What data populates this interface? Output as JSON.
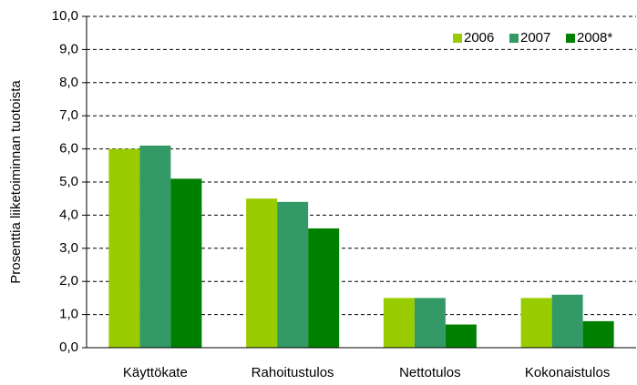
{
  "chart_data": {
    "type": "bar",
    "y_label": "Prosenttia liiketoiminnan tuotoista",
    "categories": [
      "Käyttökate",
      "Rahoitustulos",
      "Nettotulos",
      "Kokonaistulos"
    ],
    "series": [
      {
        "name": "2006",
        "color": "#99cc00",
        "values": [
          6.0,
          4.5,
          1.5,
          1.5
        ]
      },
      {
        "name": "2007",
        "color": "#339966",
        "values": [
          6.1,
          4.4,
          1.5,
          1.6
        ]
      },
      {
        "name": "2008*",
        "color": "#008000",
        "values": [
          5.1,
          3.6,
          0.7,
          0.8
        ]
      }
    ],
    "ylim": [
      0,
      10
    ],
    "yticks": [
      {
        "value": 0,
        "label": "0,0"
      },
      {
        "value": 1,
        "label": "1,0"
      },
      {
        "value": 2,
        "label": "2,0"
      },
      {
        "value": 3,
        "label": "3,0"
      },
      {
        "value": 4,
        "label": "4,0"
      },
      {
        "value": 5,
        "label": "5,0"
      },
      {
        "value": 6,
        "label": "6,0"
      },
      {
        "value": 7,
        "label": "7,0"
      },
      {
        "value": 8,
        "label": "8,0"
      },
      {
        "value": 9,
        "label": "9,0"
      },
      {
        "value": 10,
        "label": "10,0"
      }
    ],
    "grid": true,
    "legend": "upper right"
  }
}
